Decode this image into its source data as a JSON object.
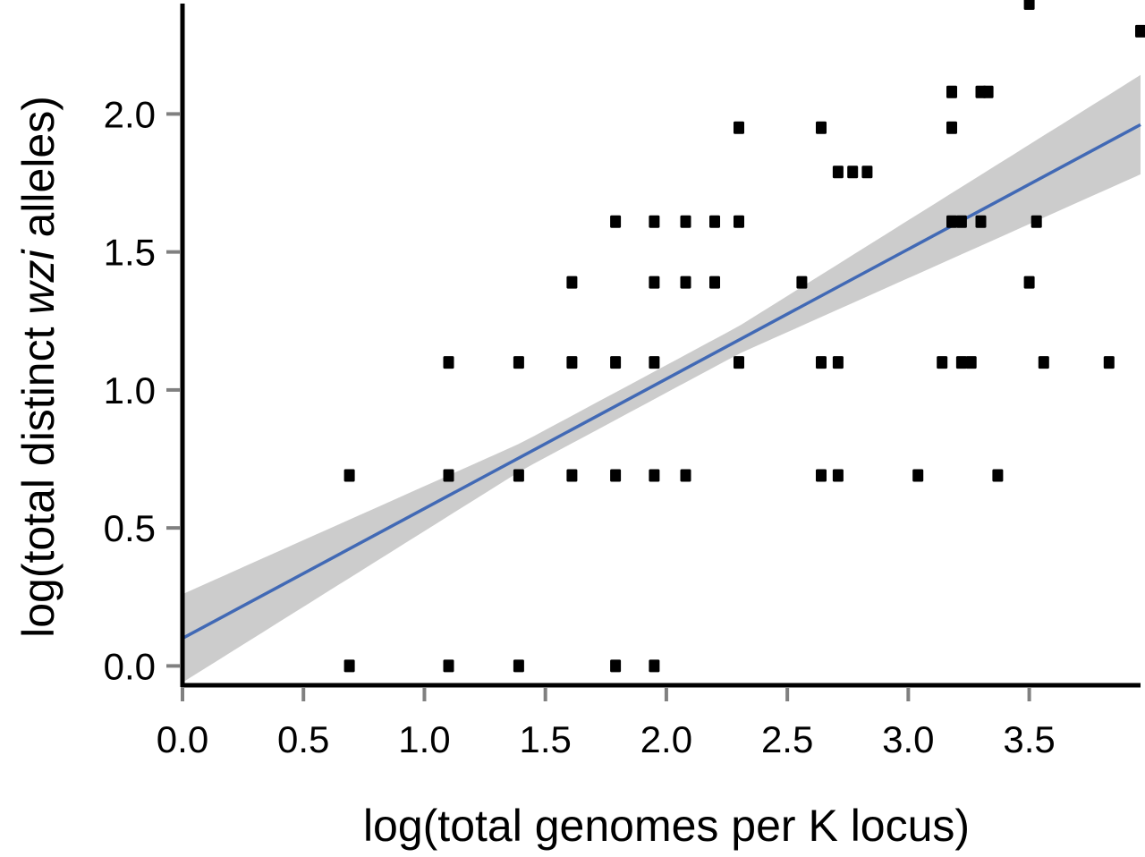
{
  "chart_data": {
    "type": "scatter",
    "title": "",
    "xlabel": "log(total genomes per K locus)",
    "ylabel": {
      "prefix": "log(total distinct ",
      "italic": "wzi",
      "suffix": " alleles)"
    },
    "xlim": [
      0,
      3.96
    ],
    "ylim": [
      -0.07,
      2.4
    ],
    "x_ticks": [
      "0.0",
      "0.5",
      "1.0",
      "1.5",
      "2.0",
      "2.5",
      "3.0",
      "3.5"
    ],
    "y_ticks": [
      "0.0",
      "0.5",
      "1.0",
      "1.5",
      "2.0"
    ],
    "grid": false,
    "colors": {
      "points": "#000000",
      "fit_line": "#4169b5",
      "confidence_band": "#cccccc",
      "axis": "#000000",
      "tick": "#808080"
    },
    "points": [
      {
        "x": 0.69,
        "y": 0.0
      },
      {
        "x": 1.1,
        "y": 0.0
      },
      {
        "x": 1.39,
        "y": 0.0
      },
      {
        "x": 1.79,
        "y": 0.0
      },
      {
        "x": 1.95,
        "y": 0.0
      },
      {
        "x": 0.69,
        "y": 0.69
      },
      {
        "x": 1.1,
        "y": 0.69
      },
      {
        "x": 1.39,
        "y": 0.69
      },
      {
        "x": 1.61,
        "y": 0.69
      },
      {
        "x": 1.79,
        "y": 0.69
      },
      {
        "x": 1.95,
        "y": 0.69
      },
      {
        "x": 2.08,
        "y": 0.69
      },
      {
        "x": 2.64,
        "y": 0.69
      },
      {
        "x": 2.71,
        "y": 0.69
      },
      {
        "x": 3.04,
        "y": 0.69
      },
      {
        "x": 3.37,
        "y": 0.69
      },
      {
        "x": 1.1,
        "y": 1.1
      },
      {
        "x": 1.39,
        "y": 1.1
      },
      {
        "x": 1.61,
        "y": 1.1
      },
      {
        "x": 1.79,
        "y": 1.1
      },
      {
        "x": 1.95,
        "y": 1.1
      },
      {
        "x": 2.3,
        "y": 1.1
      },
      {
        "x": 2.64,
        "y": 1.1
      },
      {
        "x": 2.71,
        "y": 1.1
      },
      {
        "x": 3.14,
        "y": 1.1
      },
      {
        "x": 3.22,
        "y": 1.1
      },
      {
        "x": 3.26,
        "y": 1.1
      },
      {
        "x": 3.56,
        "y": 1.1
      },
      {
        "x": 3.83,
        "y": 1.1
      },
      {
        "x": 1.61,
        "y": 1.39
      },
      {
        "x": 1.95,
        "y": 1.39
      },
      {
        "x": 2.08,
        "y": 1.39
      },
      {
        "x": 2.2,
        "y": 1.39
      },
      {
        "x": 2.56,
        "y": 1.39
      },
      {
        "x": 3.5,
        "y": 1.39
      },
      {
        "x": 1.79,
        "y": 1.61
      },
      {
        "x": 1.95,
        "y": 1.61
      },
      {
        "x": 2.08,
        "y": 1.61
      },
      {
        "x": 2.2,
        "y": 1.61
      },
      {
        "x": 2.3,
        "y": 1.61
      },
      {
        "x": 3.18,
        "y": 1.61
      },
      {
        "x": 3.22,
        "y": 1.61
      },
      {
        "x": 3.3,
        "y": 1.61
      },
      {
        "x": 3.53,
        "y": 1.61
      },
      {
        "x": 2.71,
        "y": 1.79
      },
      {
        "x": 2.77,
        "y": 1.79
      },
      {
        "x": 2.83,
        "y": 1.79
      },
      {
        "x": 2.3,
        "y": 1.95
      },
      {
        "x": 2.64,
        "y": 1.95
      },
      {
        "x": 3.18,
        "y": 1.95
      },
      {
        "x": 3.18,
        "y": 2.08
      },
      {
        "x": 3.3,
        "y": 2.08
      },
      {
        "x": 3.33,
        "y": 2.08
      },
      {
        "x": 3.5,
        "y": 2.4
      },
      {
        "x": 3.96,
        "y": 2.3
      }
    ],
    "fit": {
      "intercept": 0.1,
      "slope": 0.47,
      "band_half_width": {
        "at_x": [
          0.0,
          1.4,
          2.3,
          3.96
        ],
        "values": [
          0.16,
          0.05,
          0.05,
          0.18
        ]
      }
    }
  }
}
